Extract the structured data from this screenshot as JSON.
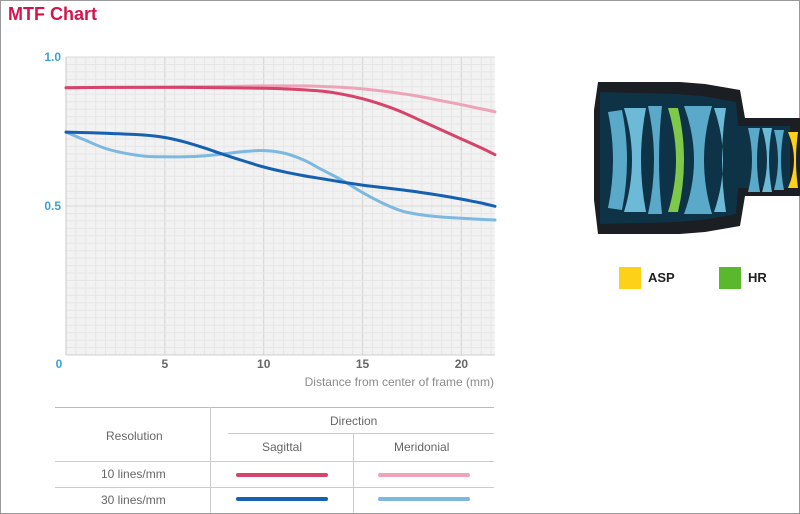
{
  "title": "MTF Chart",
  "chart_data": {
    "type": "line",
    "xlabel": "Distance from center of frame (mm)",
    "ylabel": "",
    "xlim": [
      0,
      21.7
    ],
    "ylim": [
      0,
      1.0
    ],
    "x_ticks": [
      "0",
      "5",
      "10",
      "15",
      "20"
    ],
    "y_ticks": [
      "1.0",
      "0.5"
    ],
    "grid": true,
    "series": [
      {
        "key": "s10",
        "color": "#d6436b",
        "x": [
          0,
          2,
          4,
          6,
          8,
          10,
          11,
          12,
          13,
          14,
          15,
          16,
          17,
          18,
          19,
          20,
          21,
          21.7
        ],
        "y": [
          0.897,
          0.898,
          0.898,
          0.898,
          0.897,
          0.895,
          0.893,
          0.89,
          0.885,
          0.875,
          0.86,
          0.84,
          0.815,
          0.785,
          0.755,
          0.725,
          0.695,
          0.672
        ]
      },
      {
        "key": "m10",
        "color": "#eda3b8",
        "x": [
          0,
          2,
          4,
          6,
          8,
          10,
          12,
          13,
          14,
          15,
          16,
          17,
          18,
          19,
          20,
          21,
          21.7
        ],
        "y": [
          0.897,
          0.898,
          0.899,
          0.9,
          0.901,
          0.903,
          0.903,
          0.901,
          0.898,
          0.893,
          0.886,
          0.877,
          0.866,
          0.853,
          0.84,
          0.826,
          0.816
        ]
      },
      {
        "key": "s30",
        "color": "#1560b0",
        "x": [
          0,
          2,
          4,
          5,
          6,
          7,
          8,
          9,
          10,
          11,
          12,
          13,
          14,
          15,
          16,
          17,
          18,
          19,
          20,
          21,
          21.7
        ],
        "y": [
          0.748,
          0.744,
          0.738,
          0.73,
          0.715,
          0.695,
          0.672,
          0.651,
          0.631,
          0.615,
          0.602,
          0.591,
          0.58,
          0.57,
          0.562,
          0.554,
          0.545,
          0.535,
          0.523,
          0.51,
          0.499
        ]
      },
      {
        "key": "m30",
        "color": "#7db8e0",
        "x": [
          0,
          1,
          2,
          3,
          4,
          5,
          6,
          7,
          8,
          9,
          10,
          11,
          12,
          13,
          14,
          15,
          16,
          17,
          18,
          19,
          20,
          21,
          21.7
        ],
        "y": [
          0.748,
          0.72,
          0.693,
          0.677,
          0.667,
          0.665,
          0.665,
          0.668,
          0.675,
          0.683,
          0.686,
          0.678,
          0.655,
          0.62,
          0.585,
          0.545,
          0.51,
          0.483,
          0.47,
          0.463,
          0.459,
          0.455,
          0.453
        ]
      }
    ]
  },
  "legend_table": {
    "resolution_header": "Resolution",
    "direction_header": "Direction",
    "sagittal": "Sagittal",
    "meridonial": "Meridonial",
    "rows": [
      {
        "label": "10 lines/mm",
        "sagittal_color": "#d6436b",
        "meridonial_color": "#eda3b8"
      },
      {
        "label": "30 lines/mm",
        "sagittal_color": "#1560b0",
        "meridonial_color": "#7db8e0"
      }
    ]
  },
  "lens_legend": [
    {
      "label": "ASP",
      "color": "#fcd117"
    },
    {
      "label": "HR",
      "color": "#5ab82e"
    }
  ]
}
